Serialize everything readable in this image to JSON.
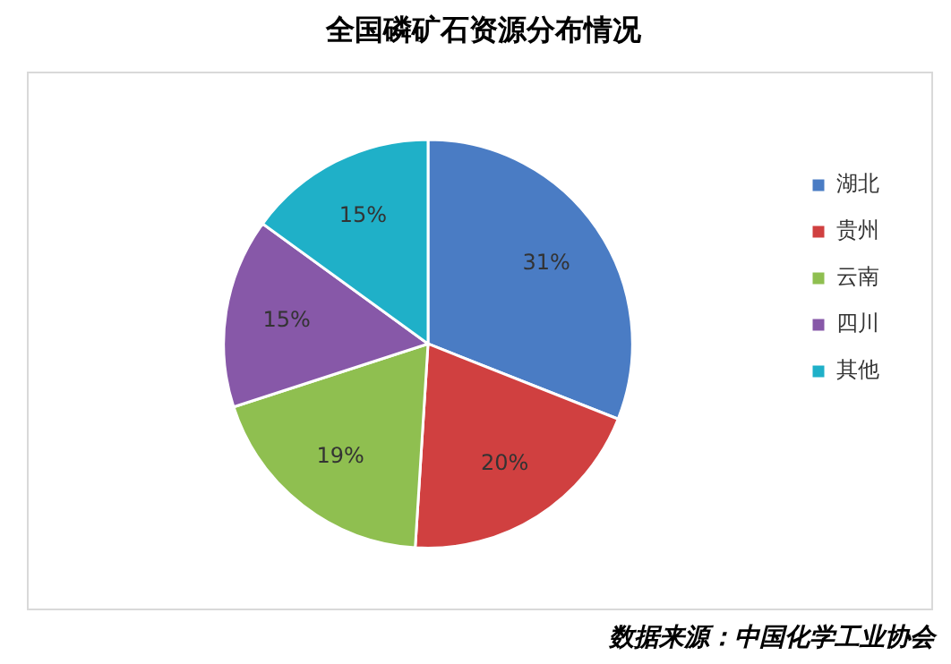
{
  "chart_data": {
    "type": "pie",
    "title": "全国磷矿石资源分布情况",
    "categories": [
      "湖北",
      "贵州",
      "云南",
      "四川",
      "其他"
    ],
    "values": [
      31,
      20,
      19,
      15,
      15
    ],
    "colors": [
      "#4a7cc4",
      "#d04040",
      "#8fbf50",
      "#8758a8",
      "#1fb0c8"
    ],
    "value_labels": [
      "31%",
      "20%",
      "19%",
      "15%",
      "15%"
    ],
    "legend": "right",
    "annotations": [
      "数据来源：中国化学工业协会"
    ]
  }
}
